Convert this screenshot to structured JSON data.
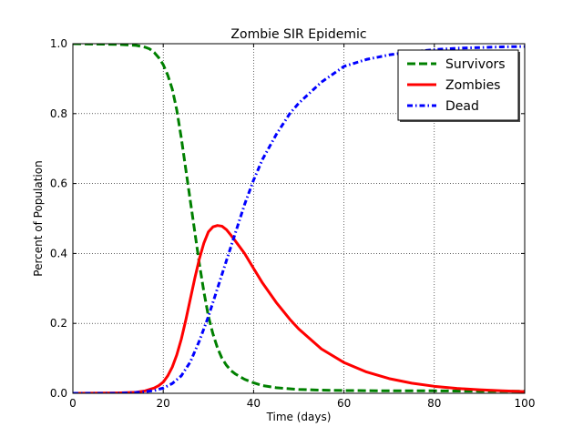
{
  "chart_data": {
    "type": "line",
    "title": "Zombie SIR Epidemic",
    "xlabel": "Time (days)",
    "ylabel": "Percent of Population",
    "xlim": [
      0,
      100
    ],
    "ylim": [
      0,
      1.0
    ],
    "xticks": [
      0,
      20,
      40,
      60,
      80,
      100
    ],
    "xtick_labels": [
      "0",
      "20",
      "40",
      "60",
      "80",
      "100"
    ],
    "yticks": [
      0,
      0.2,
      0.4,
      0.6,
      0.8,
      1.0
    ],
    "ytick_labels": [
      "0.0",
      "0.2",
      "0.4",
      "0.6",
      "0.8",
      "1.0"
    ],
    "grid": true,
    "legend_position": "top-right",
    "series": [
      {
        "name": "Survivors",
        "color": "#008000",
        "style": "dashed",
        "x": [
          0,
          10,
          14,
          16,
          17,
          18,
          19,
          20,
          21,
          22,
          23,
          24,
          25,
          26,
          27,
          28,
          29,
          30,
          31,
          32,
          33,
          34,
          35,
          36,
          38,
          40,
          42,
          45,
          50,
          55,
          60,
          70,
          80,
          90,
          100
        ],
        "y": [
          1.0,
          0.998,
          0.995,
          0.99,
          0.985,
          0.975,
          0.96,
          0.94,
          0.91,
          0.87,
          0.81,
          0.73,
          0.64,
          0.55,
          0.46,
          0.37,
          0.29,
          0.22,
          0.17,
          0.13,
          0.1,
          0.08,
          0.065,
          0.055,
          0.04,
          0.03,
          0.022,
          0.016,
          0.011,
          0.009,
          0.008,
          0.007,
          0.007,
          0.006,
          0.006
        ]
      },
      {
        "name": "Zombies",
        "color": "#ff0000",
        "style": "solid",
        "x": [
          0,
          10,
          14,
          16,
          18,
          19,
          20,
          21,
          22,
          23,
          24,
          25,
          26,
          27,
          28,
          29,
          30,
          31,
          32,
          33,
          34,
          35,
          36,
          38,
          40,
          42,
          45,
          48,
          50,
          55,
          60,
          65,
          70,
          75,
          80,
          85,
          90,
          95,
          100
        ],
        "y": [
          0.0,
          0.001,
          0.003,
          0.007,
          0.015,
          0.022,
          0.032,
          0.05,
          0.075,
          0.11,
          0.155,
          0.21,
          0.27,
          0.33,
          0.385,
          0.43,
          0.462,
          0.476,
          0.48,
          0.478,
          0.468,
          0.452,
          0.435,
          0.4,
          0.357,
          0.315,
          0.26,
          0.212,
          0.184,
          0.127,
          0.088,
          0.061,
          0.042,
          0.029,
          0.02,
          0.014,
          0.01,
          0.007,
          0.005
        ]
      },
      {
        "name": "Dead",
        "color": "#0000ff",
        "style": "dashdot",
        "x": [
          0,
          10,
          15,
          18,
          20,
          22,
          24,
          26,
          28,
          30,
          32,
          34,
          36,
          38,
          40,
          42,
          45,
          48,
          50,
          55,
          60,
          65,
          70,
          75,
          80,
          85,
          90,
          95,
          100
        ],
        "y": [
          0.0,
          0.0,
          0.003,
          0.008,
          0.015,
          0.028,
          0.05,
          0.09,
          0.15,
          0.22,
          0.3,
          0.38,
          0.46,
          0.54,
          0.61,
          0.67,
          0.74,
          0.8,
          0.83,
          0.89,
          0.935,
          0.955,
          0.968,
          0.977,
          0.983,
          0.987,
          0.989,
          0.991,
          0.992
        ]
      }
    ]
  }
}
